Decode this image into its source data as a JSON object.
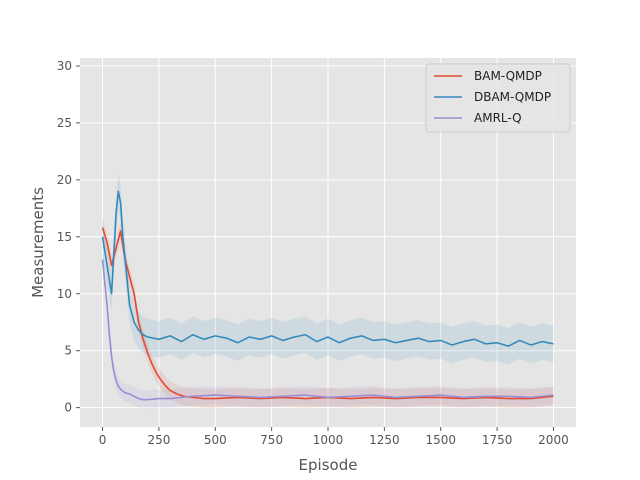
{
  "chart_data": {
    "type": "line",
    "xlabel": "Episode",
    "ylabel": "Measurements",
    "xlim": [
      -100,
      2100
    ],
    "ylim": [
      -1.7,
      30.7
    ],
    "xticks": [
      0,
      250,
      500,
      750,
      1000,
      1250,
      1500,
      1750,
      2000
    ],
    "yticks": [
      0,
      5,
      10,
      15,
      20,
      25,
      30
    ],
    "grid": true,
    "legend_position": "top-right",
    "background": "#e5e5e5",
    "series": [
      {
        "name": "BAM-QMDP",
        "color": "#e24a33",
        "x": [
          0,
          20,
          40,
          60,
          80,
          100,
          120,
          140,
          160,
          180,
          200,
          220,
          240,
          260,
          280,
          300,
          330,
          360,
          400,
          450,
          500,
          600,
          700,
          800,
          900,
          1000,
          1100,
          1200,
          1300,
          1400,
          1500,
          1600,
          1700,
          1800,
          1900,
          2000
        ],
        "y": [
          15.8,
          14.5,
          12.5,
          14.0,
          15.5,
          13.0,
          11.5,
          10.0,
          7.5,
          6.0,
          4.8,
          3.8,
          3.0,
          2.4,
          1.9,
          1.5,
          1.2,
          1.0,
          0.9,
          0.8,
          0.8,
          0.9,
          0.8,
          0.9,
          0.8,
          0.9,
          0.8,
          0.9,
          0.8,
          0.9,
          0.9,
          0.8,
          0.9,
          0.8,
          0.8,
          1.0
        ],
        "band": 0.8
      },
      {
        "name": "DBAM-QMDP",
        "color": "#348abd",
        "x": [
          0,
          20,
          40,
          60,
          70,
          80,
          90,
          100,
          120,
          140,
          160,
          180,
          200,
          250,
          300,
          350,
          400,
          450,
          500,
          550,
          600,
          650,
          700,
          750,
          800,
          850,
          900,
          950,
          1000,
          1050,
          1100,
          1150,
          1200,
          1250,
          1300,
          1350,
          1400,
          1450,
          1500,
          1550,
          1600,
          1650,
          1700,
          1750,
          1800,
          1850,
          1900,
          1950,
          2000
        ],
        "y": [
          15.0,
          12.5,
          10.0,
          17.0,
          19.0,
          18.0,
          15.0,
          13.0,
          9.0,
          7.5,
          6.8,
          6.4,
          6.2,
          6.0,
          6.3,
          5.8,
          6.4,
          6.0,
          6.3,
          6.1,
          5.7,
          6.2,
          6.0,
          6.3,
          5.9,
          6.2,
          6.4,
          5.8,
          6.2,
          5.7,
          6.1,
          6.3,
          5.9,
          6.0,
          5.7,
          5.9,
          6.1,
          5.8,
          5.9,
          5.5,
          5.8,
          6.0,
          5.6,
          5.7,
          5.4,
          5.9,
          5.5,
          5.8,
          5.6
        ],
        "band": 1.6
      },
      {
        "name": "AMRL-Q",
        "color": "#988ed5",
        "x": [
          0,
          10,
          20,
          30,
          40,
          50,
          60,
          70,
          80,
          100,
          120,
          140,
          160,
          180,
          200,
          250,
          300,
          350,
          400,
          500,
          600,
          700,
          800,
          900,
          1000,
          1100,
          1200,
          1300,
          1400,
          1500,
          1600,
          1700,
          1800,
          1900,
          2000
        ],
        "y": [
          13.0,
          11.0,
          9.0,
          6.5,
          4.5,
          3.2,
          2.4,
          1.9,
          1.6,
          1.3,
          1.2,
          1.0,
          0.8,
          0.7,
          0.7,
          0.8,
          0.8,
          0.9,
          1.0,
          1.1,
          1.0,
          0.9,
          1.0,
          1.1,
          0.9,
          1.0,
          1.1,
          0.9,
          1.0,
          1.1,
          0.9,
          1.0,
          1.0,
          0.9,
          1.1
        ],
        "band": 0.8
      }
    ]
  }
}
